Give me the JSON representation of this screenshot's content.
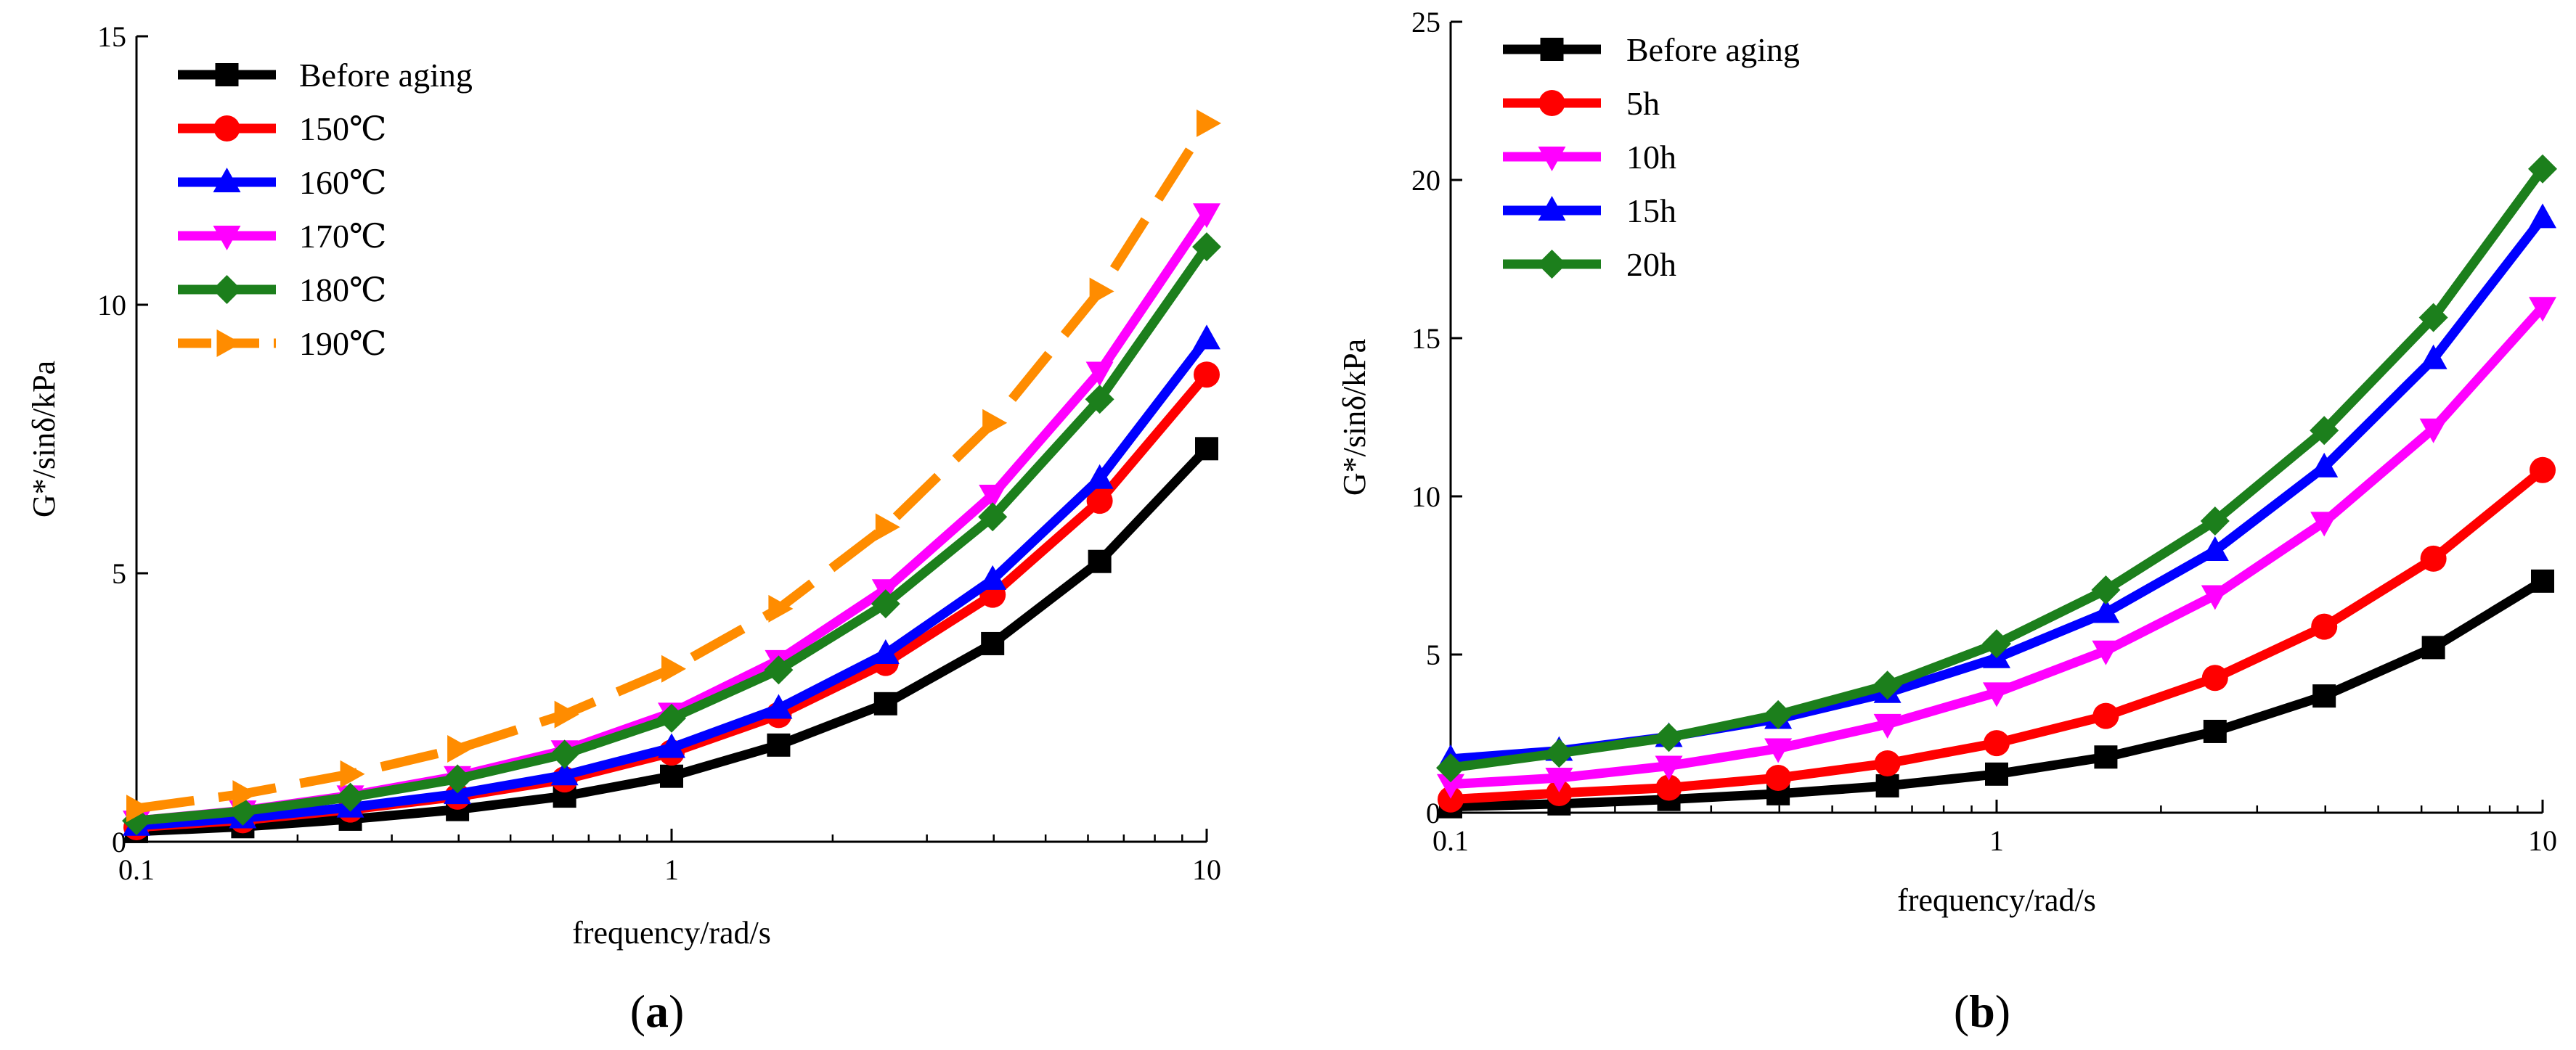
{
  "chart_data": [
    {
      "type": "line",
      "panel_label": "(a)",
      "panel_letter": "a",
      "xlabel": "frequency/rad/s",
      "ylabel": "G*/sinδ/kPa",
      "xscale": "log",
      "xlim": [
        0.1,
        10
      ],
      "ylim": [
        0,
        15
      ],
      "xticks": [
        {
          "value": 0.1,
          "label": "0.1"
        },
        {
          "value": 1,
          "label": "1"
        },
        {
          "value": 10,
          "label": "10"
        }
      ],
      "yticks": [
        {
          "value": 0,
          "label": "0"
        },
        {
          "value": 5,
          "label": "5"
        },
        {
          "value": 10,
          "label": "10"
        },
        {
          "value": 15,
          "label": "15"
        }
      ],
      "legend_position": "top-left",
      "x": [
        0.1,
        0.158,
        0.251,
        0.398,
        0.631,
        1.0,
        1.585,
        2.512,
        3.981,
        6.31,
        10.0
      ],
      "series": [
        {
          "name": "Before aging",
          "color": "#000000",
          "marker": "square",
          "dashed": false,
          "values": [
            0.19,
            0.28,
            0.42,
            0.6,
            0.85,
            1.22,
            1.8,
            2.57,
            3.69,
            5.22,
            7.32
          ]
        },
        {
          "name": "150℃",
          "color": "#ff0000",
          "marker": "circle",
          "dashed": false,
          "values": [
            0.27,
            0.4,
            0.6,
            0.84,
            1.16,
            1.66,
            2.36,
            3.33,
            4.6,
            6.35,
            8.7
          ]
        },
        {
          "name": "160℃",
          "color": "#0000ff",
          "marker": "triangle-up",
          "dashed": false,
          "values": [
            0.3,
            0.44,
            0.64,
            0.89,
            1.24,
            1.75,
            2.48,
            3.5,
            4.88,
            6.76,
            9.36
          ]
        },
        {
          "name": "170℃",
          "color": "#ff00ff",
          "marker": "triangle-down",
          "dashed": false,
          "values": [
            0.39,
            0.58,
            0.86,
            1.22,
            1.7,
            2.4,
            3.38,
            4.7,
            6.46,
            8.75,
            11.7
          ]
        },
        {
          "name": "180℃",
          "color": "#1c7f1c",
          "marker": "diamond",
          "dashed": false,
          "values": [
            0.39,
            0.57,
            0.83,
            1.17,
            1.63,
            2.3,
            3.2,
            4.43,
            6.05,
            8.24,
            11.08
          ]
        },
        {
          "name": "190℃",
          "color": "#ff8c00",
          "marker": "triangle-right",
          "dashed": true,
          "values": [
            0.62,
            0.89,
            1.26,
            1.73,
            2.37,
            3.22,
            4.34,
            5.86,
            7.8,
            10.25,
            13.38
          ]
        }
      ]
    },
    {
      "type": "line",
      "panel_label": "(b)",
      "panel_letter": "b",
      "xlabel": "frequency/rad/s",
      "ylabel": "G*/sinδ/kPa",
      "xscale": "log",
      "xlim": [
        0.1,
        10
      ],
      "ylim": [
        0,
        25
      ],
      "xticks": [
        {
          "value": 0.1,
          "label": "0.1"
        },
        {
          "value": 1,
          "label": "1"
        },
        {
          "value": 10,
          "label": "10"
        }
      ],
      "yticks": [
        {
          "value": 0,
          "label": "0"
        },
        {
          "value": 5,
          "label": "5"
        },
        {
          "value": 10,
          "label": "10"
        },
        {
          "value": 15,
          "label": "15"
        },
        {
          "value": 20,
          "label": "20"
        },
        {
          "value": 25,
          "label": "25"
        }
      ],
      "legend_position": "top-left",
      "x": [
        0.1,
        0.158,
        0.251,
        0.398,
        0.631,
        1.0,
        1.585,
        2.512,
        3.981,
        6.31,
        10.0
      ],
      "series": [
        {
          "name": "Before aging",
          "color": "#000000",
          "marker": "square",
          "dashed": false,
          "values": [
            0.19,
            0.28,
            0.42,
            0.6,
            0.85,
            1.22,
            1.76,
            2.57,
            3.69,
            5.22,
            7.32
          ]
        },
        {
          "name": "5h",
          "color": "#ff0000",
          "marker": "circle",
          "dashed": false,
          "values": [
            0.42,
            0.62,
            0.79,
            1.1,
            1.56,
            2.2,
            3.06,
            4.26,
            5.88,
            8.03,
            10.83
          ]
        },
        {
          "name": "10h",
          "color": "#ff00ff",
          "marker": "triangle-down",
          "dashed": false,
          "values": [
            0.9,
            1.1,
            1.48,
            2.03,
            2.8,
            3.8,
            5.12,
            6.87,
            9.19,
            12.14,
            15.98
          ]
        },
        {
          "name": "15h",
          "color": "#0000ff",
          "marker": "triangle-up",
          "dashed": false,
          "values": [
            1.7,
            1.96,
            2.4,
            2.97,
            3.79,
            4.89,
            6.32,
            8.28,
            10.92,
            14.34,
            18.8
          ]
        },
        {
          "name": "20h",
          "color": "#1c7f1c",
          "marker": "diamond",
          "dashed": false,
          "values": [
            1.42,
            1.88,
            2.38,
            3.1,
            4.03,
            5.34,
            7.04,
            9.22,
            12.08,
            15.65,
            20.35
          ]
        }
      ]
    }
  ]
}
